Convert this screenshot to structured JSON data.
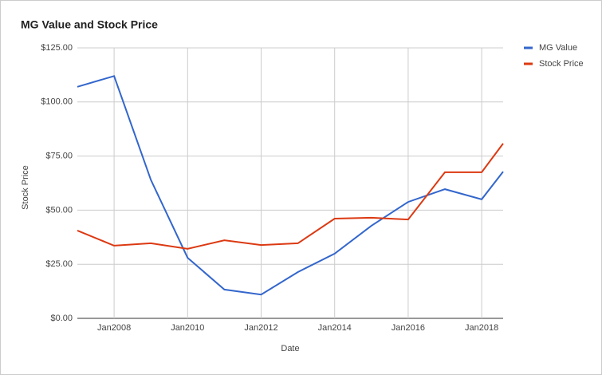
{
  "chart_data": {
    "type": "line",
    "title": "MG Value and Stock Price",
    "x_label": "Date",
    "y_label": "Stock Price",
    "x": [
      "2007-01",
      "2008-01",
      "2009-01",
      "2010-01",
      "2011-01",
      "2012-01",
      "2013-01",
      "2014-01",
      "2015-01",
      "2016-01",
      "2017-01",
      "2018-01",
      "2018-08"
    ],
    "series": [
      {
        "name": "MG Value",
        "color": "#3366cc",
        "values": [
          107,
          112,
          64,
          28,
          13.3,
          11,
          21.4,
          29.9,
          42.8,
          53.8,
          59.7,
          55,
          67.8
        ]
      },
      {
        "name": "Stock Price",
        "color": "#dc3912",
        "values": [
          40.6,
          33.6,
          34.7,
          32.1,
          36.1,
          33.9,
          34.7,
          46.1,
          46.5,
          45.7,
          67.5,
          67.5,
          80.8
        ]
      }
    ],
    "xlim": [
      "2007-01",
      "2018-08"
    ],
    "xticks": [
      {
        "value": "2008-01",
        "label": "Jan2008"
      },
      {
        "value": "2010-01",
        "label": "Jan2010"
      },
      {
        "value": "2012-01",
        "label": "Jan2012"
      },
      {
        "value": "2014-01",
        "label": "Jan2014"
      },
      {
        "value": "2016-01",
        "label": "Jan2016"
      },
      {
        "value": "2018-01",
        "label": "Jan2018"
      }
    ],
    "ylim": [
      0,
      125
    ],
    "yticks": [
      {
        "value": 0,
        "label": "$0.00"
      },
      {
        "value": 25,
        "label": "$25.00"
      },
      {
        "value": 50,
        "label": "$50.00"
      },
      {
        "value": 75,
        "label": "$75.00"
      },
      {
        "value": 100,
        "label": "$100.00"
      },
      {
        "value": 125,
        "label": "$125.00"
      }
    ],
    "grid": true,
    "legend": "right"
  }
}
